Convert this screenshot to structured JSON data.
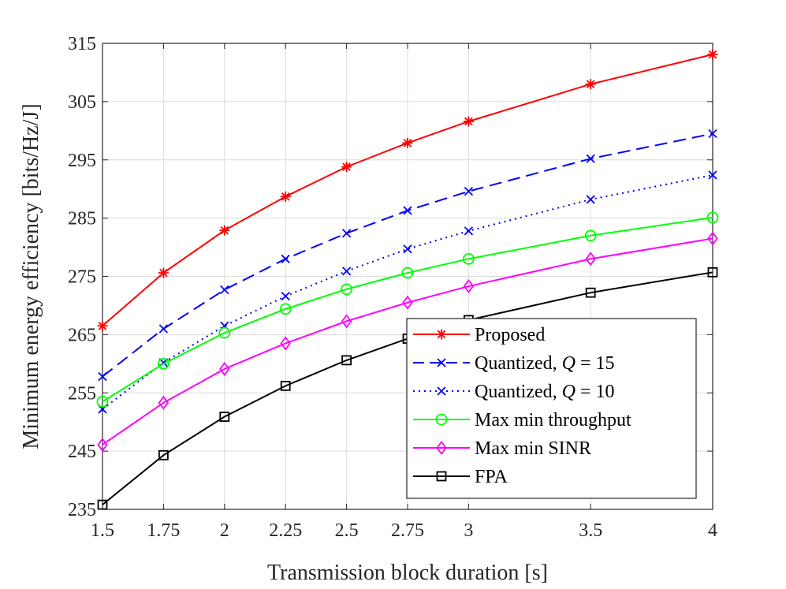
{
  "chart_data": {
    "type": "line",
    "title": "",
    "xlabel": "Transmission block duration [s]",
    "ylabel": "Minimum energy efficiency [bits/Hz/J]",
    "x": [
      1.5,
      1.75,
      2,
      2.25,
      2.5,
      2.75,
      3,
      3.5,
      4
    ],
    "xticks": [
      1.5,
      1.75,
      2,
      2.25,
      2.5,
      2.75,
      3,
      3.5,
      4
    ],
    "xtick_labels": [
      "1.5",
      "1.75",
      "2",
      "2.25",
      "2.5",
      "2.75",
      "3",
      "3.5",
      "4"
    ],
    "xlim": [
      1.5,
      4
    ],
    "yticks": [
      235,
      245,
      255,
      265,
      275,
      285,
      295,
      305,
      315
    ],
    "ytick_labels": [
      "235",
      "245",
      "255",
      "265",
      "275",
      "285",
      "295",
      "305",
      "315"
    ],
    "ylim": [
      235,
      315
    ],
    "grid": true,
    "legend_position": "bottom-right",
    "series": [
      {
        "name": "Proposed",
        "color": "#ff0000",
        "marker": "asterisk",
        "line": "solid",
        "values": [
          266.5,
          275.6,
          282.9,
          288.7,
          293.8,
          297.9,
          301.6,
          308.0,
          313.1
        ]
      },
      {
        "name": "Quantized, Q = 15",
        "legend_parts": [
          "Quantized, ",
          "Q",
          " = 15"
        ],
        "color": "#0000ff",
        "marker": "x",
        "line": "dashed",
        "values": [
          257.8,
          266.0,
          272.7,
          278.0,
          282.4,
          286.3,
          289.6,
          295.2,
          299.5
        ]
      },
      {
        "name": "Quantized, Q = 10",
        "legend_parts": [
          "Quantized, ",
          "Q",
          " = 10"
        ],
        "color": "#0000ff",
        "marker": "x",
        "line": "dotted",
        "values": [
          252.2,
          260.2,
          266.5,
          271.6,
          275.9,
          279.7,
          282.8,
          288.2,
          292.4
        ]
      },
      {
        "name": "Max min throughput",
        "color": "#00ff00",
        "marker": "circle",
        "line": "solid",
        "values": [
          253.5,
          260.0,
          265.3,
          269.4,
          272.8,
          275.6,
          278.0,
          282.0,
          285.1
        ]
      },
      {
        "name": "Max min SINR",
        "color": "#ff00ff",
        "marker": "diamond",
        "line": "solid",
        "values": [
          246.1,
          253.3,
          259.1,
          263.5,
          267.3,
          270.5,
          273.3,
          278.0,
          281.5
        ]
      },
      {
        "name": "FPA",
        "color": "#000000",
        "marker": "square",
        "line": "solid",
        "values": [
          235.8,
          244.3,
          250.9,
          256.2,
          260.6,
          264.3,
          267.5,
          272.2,
          275.7
        ]
      }
    ]
  }
}
